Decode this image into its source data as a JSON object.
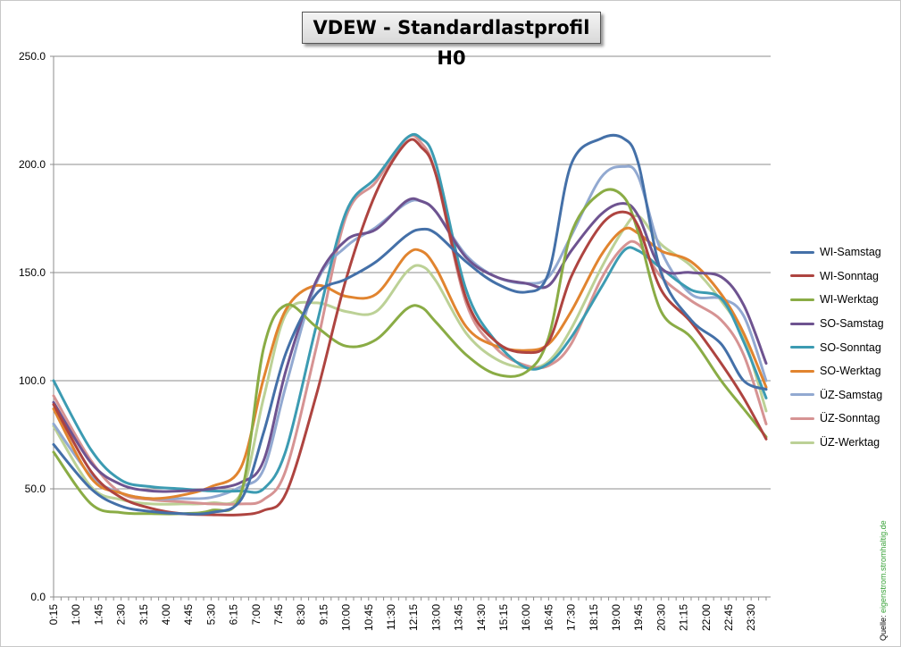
{
  "title": "VDEW - Standardlastprofil  H0",
  "source": {
    "label": "Quelle: ",
    "brand": "eigenstrom.stromhaltig.de"
  },
  "colors": {
    "WI-Samstag": "#4470a8",
    "WI-Sonntag": "#ae4440",
    "WI-Werktag": "#8aac45",
    "SO-Samstag": "#6e5390",
    "SO-Sonntag": "#3c9bb2",
    "SO-Werktag": "#e1842f",
    "ÜZ-Samstag": "#92a9d1",
    "ÜZ-Sonntag": "#d69393",
    "ÜZ-Werktag": "#bcd196"
  },
  "chart_data": {
    "type": "line",
    "ylim": [
      0,
      250
    ],
    "yticks": [
      "0.0",
      "50.0",
      "100.0",
      "150.0",
      "200.0",
      "250.0"
    ],
    "grid": true,
    "legend_position": "right",
    "xticks": [
      "0:15",
      "1:00",
      "1:45",
      "2:30",
      "3:15",
      "4:00",
      "4:45",
      "5:30",
      "6:15",
      "7:00",
      "7:45",
      "8:30",
      "9:15",
      "10:00",
      "10:45",
      "11:30",
      "12:15",
      "13:00",
      "13:45",
      "14:30",
      "15:15",
      "16:00",
      "16:45",
      "17:30",
      "18:15",
      "19:00",
      "19:45",
      "20:30",
      "21:15",
      "22:00",
      "22:45",
      "23:30"
    ],
    "x_hours": [
      0.25,
      1.5,
      2.5,
      3.5,
      4.5,
      5.5,
      6.5,
      7.25,
      8,
      9,
      10,
      11,
      12,
      12.5,
      13,
      14,
      15,
      16,
      16.75,
      17.5,
      18.5,
      19.25,
      19.75,
      20.5,
      21.5,
      22.5,
      23.25,
      24
    ],
    "series": [
      {
        "name": "WI-Samstag",
        "values": [
          70.5,
          50,
          42,
          39.5,
          38.5,
          39,
          45,
          76,
          113,
          140,
          147,
          155,
          167,
          170,
          168,
          155,
          145,
          141,
          150,
          200,
          212,
          212,
          200,
          150,
          128,
          117,
          100,
          96
        ]
      },
      {
        "name": "WI-Sonntag",
        "values": [
          89,
          58,
          46,
          41,
          38.5,
          38,
          38,
          40,
          48,
          93,
          147,
          187,
          210,
          208,
          195,
          138,
          118,
          113,
          118,
          148,
          172,
          178,
          171,
          142,
          127,
          108,
          92,
          73
        ]
      },
      {
        "name": "WI-Werktag",
        "values": [
          67,
          43,
          39,
          38.5,
          38.5,
          40,
          48,
          115,
          135,
          125,
          116,
          119,
          133,
          134,
          127,
          112,
          103,
          104,
          120,
          168,
          187,
          185,
          168,
          132,
          120,
          100,
          87,
          74
        ]
      },
      {
        "name": "SO-Samstag",
        "values": [
          90,
          62,
          52,
          49,
          49,
          50,
          53,
          63,
          105,
          146,
          165,
          170,
          183,
          183,
          178,
          157,
          148,
          145,
          144,
          160,
          177,
          182,
          176,
          152,
          150,
          148,
          135,
          108
        ]
      },
      {
        "name": "SO-Sonntag",
        "values": [
          100,
          68,
          54,
          51,
          50,
          49,
          49,
          50,
          68,
          125,
          178,
          194,
          212,
          212,
          200,
          142,
          118,
          106,
          108,
          120,
          143,
          160,
          160,
          152,
          142,
          138,
          118,
          92
        ]
      },
      {
        "name": "SO-Werktag",
        "values": [
          87,
          55,
          48,
          45.5,
          47,
          51,
          60,
          101,
          133,
          144,
          139,
          140,
          158,
          160,
          152,
          125,
          116,
          114,
          117,
          132,
          158,
          170,
          168,
          160,
          155,
          140,
          122,
          97
        ]
      },
      {
        "name": "ÜZ-Samstag",
        "values": [
          80,
          56,
          48,
          45.5,
          45.5,
          46,
          51,
          59,
          98,
          145,
          162,
          171,
          182,
          183,
          178,
          158,
          148,
          145,
          148,
          167,
          194,
          199,
          194,
          160,
          140,
          138,
          130,
          100
        ]
      },
      {
        "name": "ÜZ-Sonntag",
        "values": [
          93,
          63,
          48,
          45,
          44,
          43,
          43,
          45,
          59,
          115,
          176,
          192,
          212,
          210,
          195,
          136,
          115,
          107,
          107,
          117,
          147,
          162,
          163,
          148,
          137,
          128,
          112,
          80
        ]
      },
      {
        "name": "ÜZ-Werktag",
        "values": [
          79,
          51,
          45,
          43,
          43,
          43.5,
          48,
          92,
          131,
          136,
          132,
          132,
          150,
          153,
          146,
          122,
          110,
          106,
          109,
          124,
          152,
          170,
          176,
          163,
          153,
          137,
          120,
          86
        ]
      }
    ]
  }
}
